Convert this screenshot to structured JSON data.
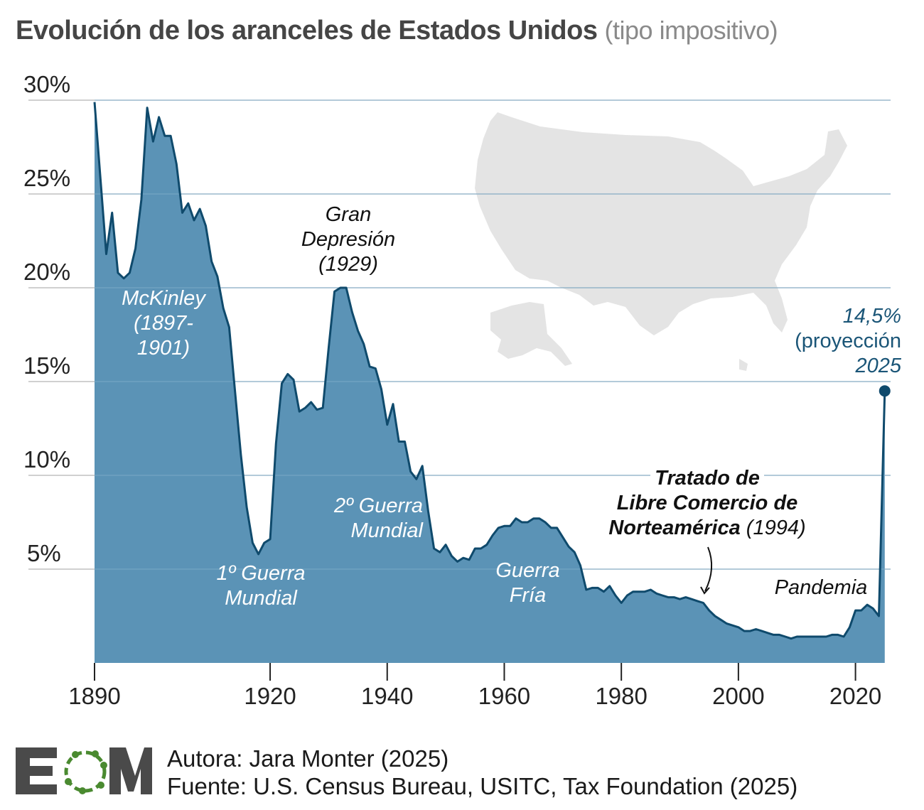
{
  "title": {
    "main": "Evolución de los aranceles de Estados Unidos",
    "sub": "(tipo impositivo)"
  },
  "chart_data": {
    "type": "area",
    "title": "Evolución de los aranceles de Estados Unidos (tipo impositivo)",
    "xlabel": "",
    "ylabel": "",
    "xlim": [
      1890,
      2026
    ],
    "ylim": [
      0,
      30
    ],
    "x_ticks": [
      "1890",
      "1920",
      "1940",
      "1960",
      "1980",
      "2000",
      "2020"
    ],
    "y_ticks": [
      "5%",
      "10%",
      "15%",
      "20%",
      "25%",
      "30%"
    ],
    "grid": true,
    "colors": {
      "fill": "#5b93b6",
      "line": "#0f4a6c",
      "grid": "#b5b5b5",
      "projection": "#1a5577"
    },
    "x": [
      1890,
      1892,
      1893,
      1894,
      1895,
      1896,
      1897,
      1898,
      1899,
      1900,
      1901,
      1902,
      1903,
      1904,
      1905,
      1906,
      1907,
      1908,
      1909,
      1910,
      1911,
      1912,
      1913,
      1914,
      1915,
      1916,
      1917,
      1918,
      1919,
      1920,
      1921,
      1922,
      1923,
      1924,
      1925,
      1926,
      1927,
      1928,
      1929,
      1930,
      1931,
      1932,
      1933,
      1934,
      1935,
      1936,
      1937,
      1938,
      1939,
      1940,
      1941,
      1942,
      1943,
      1944,
      1945,
      1946,
      1947,
      1948,
      1949,
      1950,
      1951,
      1952,
      1953,
      1954,
      1955,
      1956,
      1957,
      1958,
      1959,
      1960,
      1961,
      1962,
      1963,
      1964,
      1965,
      1966,
      1967,
      1968,
      1969,
      1970,
      1971,
      1972,
      1973,
      1974,
      1975,
      1976,
      1977,
      1978,
      1979,
      1980,
      1981,
      1982,
      1983,
      1984,
      1985,
      1986,
      1987,
      1988,
      1989,
      1990,
      1991,
      1992,
      1993,
      1994,
      1995,
      1996,
      1997,
      1998,
      1999,
      2000,
      2001,
      2002,
      2003,
      2004,
      2005,
      2006,
      2007,
      2008,
      2009,
      2010,
      2011,
      2012,
      2013,
      2014,
      2015,
      2016,
      2017,
      2018,
      2019,
      2020,
      2021,
      2022,
      2023,
      2024,
      2025
    ],
    "y": [
      29.9,
      21.8,
      24.0,
      20.8,
      20.5,
      20.8,
      22.1,
      24.7,
      29.6,
      27.8,
      29.1,
      28.1,
      28.1,
      26.6,
      24.0,
      24.5,
      23.6,
      24.2,
      23.3,
      21.4,
      20.6,
      18.9,
      17.9,
      14.5,
      11.1,
      8.3,
      6.4,
      5.8,
      6.4,
      6.6,
      11.7,
      14.9,
      15.4,
      15.1,
      13.4,
      13.6,
      13.9,
      13.5,
      13.6,
      16.8,
      19.8,
      20.0,
      20.0,
      18.7,
      17.7,
      17.0,
      15.8,
      15.7,
      14.6,
      12.7,
      13.8,
      11.8,
      11.8,
      10.2,
      9.8,
      10.5,
      8.1,
      6.1,
      5.9,
      6.3,
      5.7,
      5.4,
      5.6,
      5.5,
      6.1,
      6.1,
      6.3,
      6.8,
      7.2,
      7.3,
      7.3,
      7.7,
      7.5,
      7.5,
      7.7,
      7.7,
      7.5,
      7.2,
      7.2,
      6.7,
      6.2,
      5.9,
      5.2,
      3.9,
      4.0,
      4.0,
      3.8,
      4.1,
      3.6,
      3.2,
      3.6,
      3.8,
      3.8,
      3.8,
      3.9,
      3.7,
      3.6,
      3.5,
      3.5,
      3.4,
      3.5,
      3.4,
      3.3,
      3.2,
      2.8,
      2.5,
      2.3,
      2.1,
      2.0,
      1.9,
      1.7,
      1.7,
      1.8,
      1.7,
      1.6,
      1.5,
      1.5,
      1.4,
      1.3,
      1.4,
      1.4,
      1.4,
      1.4,
      1.4,
      1.4,
      1.5,
      1.5,
      1.4,
      1.9,
      2.8,
      2.8,
      3.1,
      2.9,
      2.5,
      14.5
    ],
    "projection": {
      "year": 2025,
      "value": 14.5,
      "label_value": "14,5%",
      "label_text": "(proyección",
      "label_year": "2025"
    },
    "annotations": [
      {
        "id": "mckinley",
        "text": [
          "McKinley",
          "(1897-",
          "1901)"
        ]
      },
      {
        "id": "depresion",
        "text": [
          "Gran",
          "Depresión",
          "(1929)"
        ]
      },
      {
        "id": "ww1",
        "text": [
          "1º Guerra",
          "Mundial"
        ]
      },
      {
        "id": "ww2",
        "text": [
          "2º Guerra",
          "Mundial"
        ]
      },
      {
        "id": "guerrafria",
        "text": [
          "Guerra",
          "Fría"
        ]
      },
      {
        "id": "nafta",
        "text": [
          "Tratado de",
          "Libre Comercio de",
          "Norteamérica",
          "(1994)"
        ]
      },
      {
        "id": "pandemia",
        "text": [
          "Pandemia"
        ]
      }
    ]
  },
  "map": {
    "icon": "usa-map-silhouette",
    "color": "#e4e4e4"
  },
  "footer": {
    "logo_text": "EOM",
    "logo_colors": {
      "letters": "#4a4a4a",
      "dots": "#4a8a30"
    },
    "author": "Autora: Jara Monter (2025)",
    "source": "Fuente: U.S. Census Bureau, USITC, Tax Foundation (2025)"
  }
}
